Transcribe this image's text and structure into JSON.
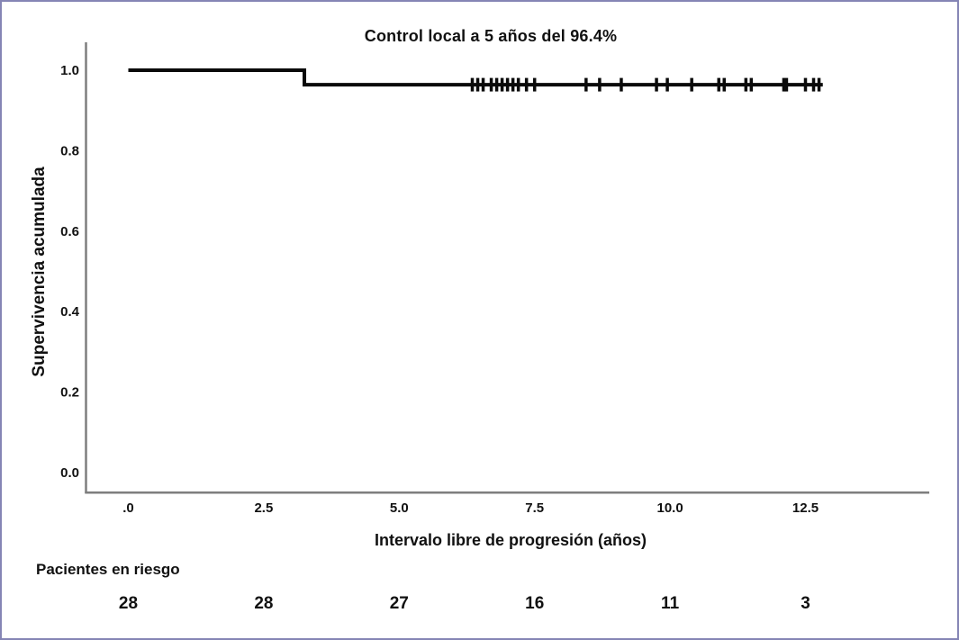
{
  "chart_data": {
    "type": "line",
    "subtype": "kaplan_meier_step",
    "title": "Control local a 5 años del 96.4%",
    "xlabel": "Intervalo libre de progresión (años)",
    "ylabel": "Supervivencia acumulada",
    "x_ticks": [
      {
        "label": ".0",
        "value": 0
      },
      {
        "label": "2.5",
        "value": 2.5
      },
      {
        "label": "5.0",
        "value": 5.0
      },
      {
        "label": "7.5",
        "value": 7.5
      },
      {
        "label": "10.0",
        "value": 10.0
      },
      {
        "label": "12.5",
        "value": 12.5
      }
    ],
    "y_ticks": [
      {
        "label": "1.0",
        "value": 1.0
      },
      {
        "label": "0.8",
        "value": 0.8
      },
      {
        "label": "0.6",
        "value": 0.6
      },
      {
        "label": "0.4",
        "value": 0.4
      },
      {
        "label": "0.2",
        "value": 0.2
      },
      {
        "label": "0.0",
        "value": 0.0
      }
    ],
    "xlim": [
      0,
      14.8
    ],
    "ylim": [
      0,
      1.0
    ],
    "grid": false,
    "legend": false,
    "series": [
      {
        "name": "Supervivencia acumulada",
        "color": "#0a0a0a",
        "step_points": [
          {
            "t": 0.0,
            "s": 1.0
          },
          {
            "t": 3.25,
            "s": 1.0
          },
          {
            "t": 3.25,
            "s": 0.964
          },
          {
            "t": 12.82,
            "s": 0.964
          }
        ],
        "censor_survival": 0.964,
        "censor_times": [
          6.35,
          6.45,
          6.55,
          6.7,
          6.8,
          6.9,
          7.0,
          7.1,
          7.2,
          7.35,
          7.5,
          8.45,
          8.7,
          9.1,
          9.75,
          9.95,
          10.4,
          10.9,
          11.0,
          11.4,
          11.5,
          12.1,
          12.15,
          12.5,
          12.65,
          12.75
        ]
      }
    ]
  },
  "risk_table": {
    "label": "Pacientes en riesgo",
    "times": [
      0,
      2.5,
      5.0,
      7.5,
      10.0,
      12.5
    ],
    "counts": [
      28,
      28,
      27,
      16,
      11,
      3
    ]
  },
  "colors": {
    "border": "#8585b5",
    "axis": "#7e7e7e",
    "curve": "#0a0a0a",
    "text": "#111111",
    "background": "#ffffff"
  }
}
